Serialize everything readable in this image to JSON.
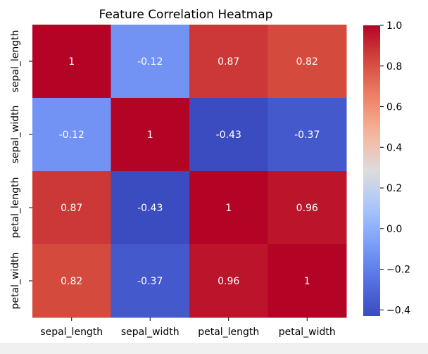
{
  "chart_data": {
    "type": "heatmap",
    "title": "Feature Correlation Heatmap",
    "xlabel": "",
    "ylabel": "",
    "x_categories": [
      "sepal_length",
      "sepal_width",
      "petal_length",
      "petal_width"
    ],
    "y_categories": [
      "sepal_length",
      "sepal_width",
      "petal_length",
      "petal_width"
    ],
    "values": [
      [
        1,
        -0.12,
        0.87,
        0.82
      ],
      [
        -0.12,
        1,
        -0.43,
        -0.37
      ],
      [
        0.87,
        -0.43,
        1,
        0.96
      ],
      [
        0.82,
        -0.37,
        0.96,
        1
      ]
    ],
    "annotations": [
      [
        "1",
        "-0.12",
        "0.87",
        "0.82"
      ],
      [
        "-0.12",
        "1",
        "-0.43",
        "-0.37"
      ],
      [
        "0.87",
        "-0.43",
        "1",
        "0.96"
      ],
      [
        "0.82",
        "-0.37",
        "0.96",
        "1"
      ]
    ],
    "colormap": "coolwarm",
    "colorbar": {
      "vmin": -0.43,
      "vmax": 1.0,
      "ticks": [
        1.0,
        0.8,
        0.6,
        0.4,
        0.2,
        0.0,
        -0.2,
        -0.4
      ],
      "tick_labels": [
        "1.0",
        "0.8",
        "0.6",
        "0.4",
        "0.2",
        "0.0",
        "−0.2",
        "−0.4"
      ]
    },
    "grid": false
  }
}
